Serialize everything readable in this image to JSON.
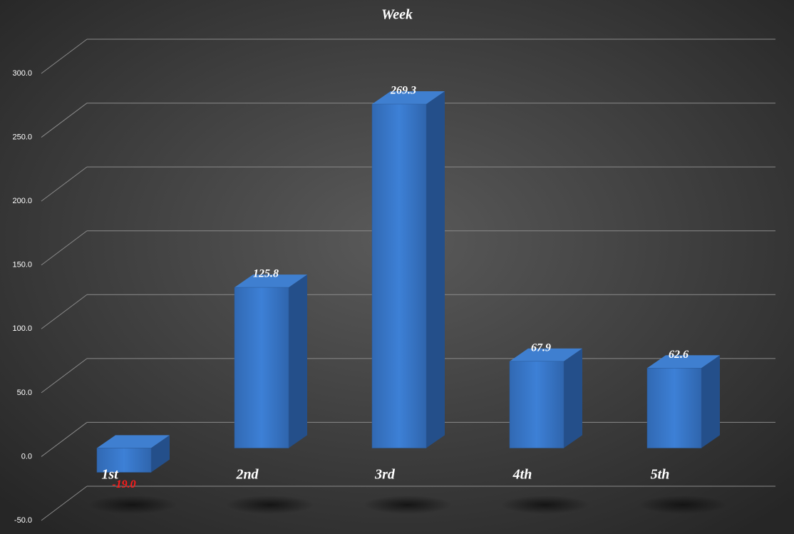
{
  "chart_data": {
    "type": "bar3d",
    "title": "Week",
    "categories": [
      "1st",
      "2nd",
      "3rd",
      "4th",
      "5th"
    ],
    "values": [
      -19.0,
      125.8,
      269.3,
      67.9,
      62.6
    ],
    "value_labels": [
      "-19.0",
      "125.8",
      "269.3",
      "67.9",
      "62.6"
    ],
    "color": "#3a78c9",
    "negative_label_color": "#ff1a1a",
    "ylim": [
      -50,
      300
    ],
    "yticks": [
      {
        "value": -50,
        "label": "-50.0"
      },
      {
        "value": 0,
        "label": "0.0"
      },
      {
        "value": 50,
        "label": "50.0"
      },
      {
        "value": 100,
        "label": "100.0"
      },
      {
        "value": 150,
        "label": "150.0"
      },
      {
        "value": 200,
        "label": "200.0"
      },
      {
        "value": 250,
        "label": "250.0"
      },
      {
        "value": 300,
        "label": "300.0"
      }
    ],
    "grid": true
  }
}
